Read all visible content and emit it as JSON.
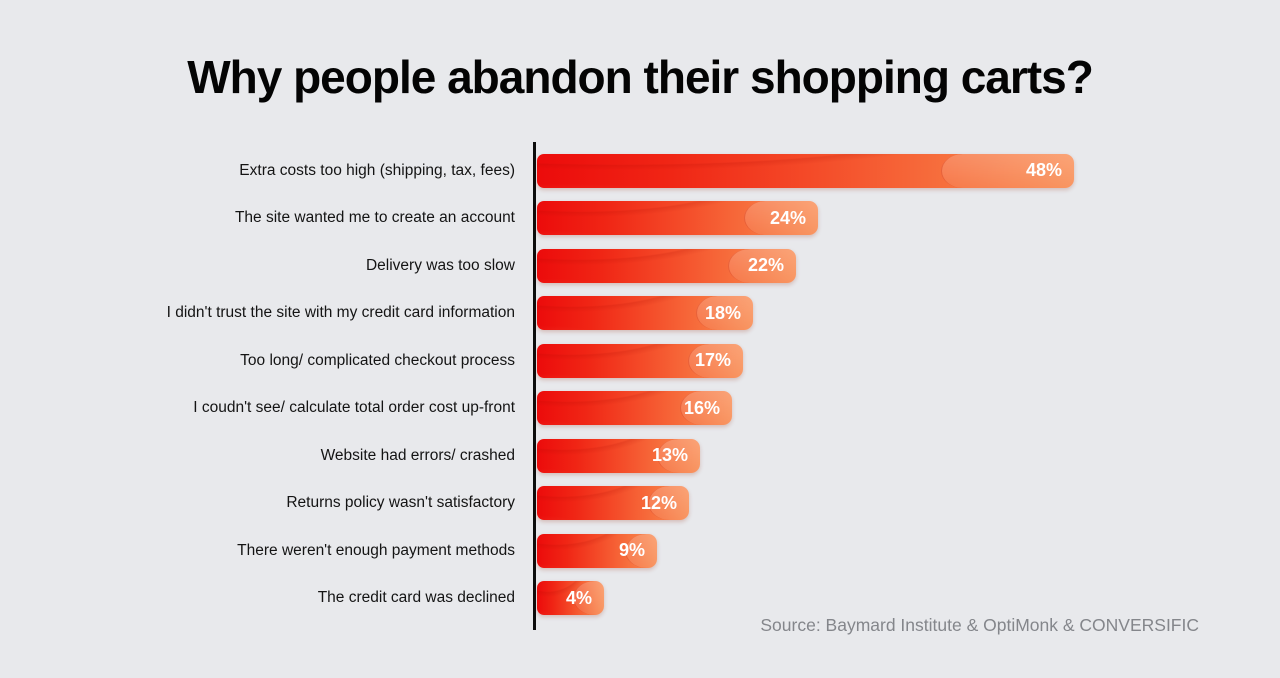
{
  "title": "Why people abandon their shopping carts?",
  "source": "Source: Baymard Institute & OptiMonk & CONVERSIFIC",
  "colors": {
    "background": "#e8e9ec",
    "bar_gradient_start": "#ec0b0b",
    "bar_gradient_end": "#f98e56",
    "axis": "#0d0d0d",
    "label_text": "#141414",
    "percent_text": "#ffffff",
    "source_text": "#84868b",
    "title_text": "#040404"
  },
  "chart_data": {
    "type": "bar",
    "orientation": "horizontal",
    "title": "Why people abandon their shopping carts?",
    "categories": [
      "Extra costs too high (shipping, tax, fees)",
      "The site wanted me to create an account",
      "Delivery was too slow",
      "I didn't trust the site with my credit card information",
      "Too long/ complicated checkout process",
      "I coudn't see/ calculate total order cost up-front",
      "Website had errors/ crashed",
      "Returns policy wasn't satisfactory",
      "There weren't enough payment methods",
      "The credit card was declined"
    ],
    "values": [
      48,
      24,
      22,
      18,
      17,
      16,
      13,
      12,
      9,
      4
    ],
    "value_labels": [
      "48%",
      "24%",
      "22%",
      "18%",
      "17%",
      "16%",
      "13%",
      "12%",
      "9%",
      "4%"
    ],
    "value_suffix": "%",
    "xlim": [
      0,
      48
    ],
    "grid": false,
    "legend": false,
    "xlabel": "",
    "ylabel": "",
    "source": "Source: Baymard Institute & OptiMonk & CONVERSIFIC"
  }
}
